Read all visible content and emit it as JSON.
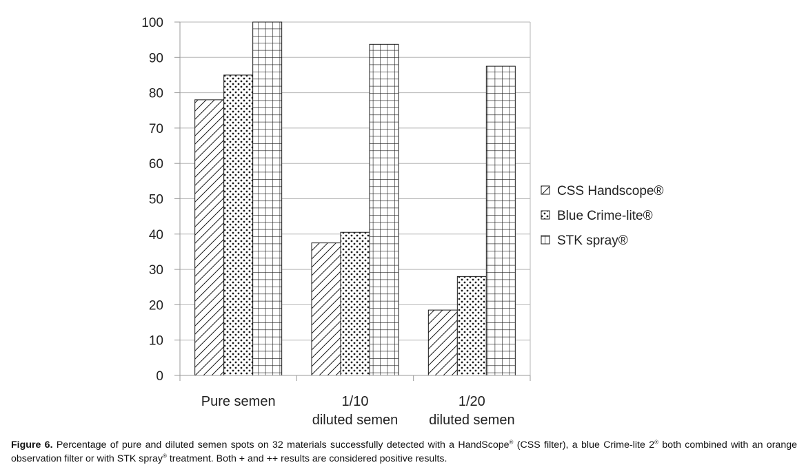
{
  "chart_data": {
    "type": "bar",
    "categories": [
      [
        "Pure semen"
      ],
      [
        "1/10",
        "diluted semen"
      ],
      [
        "1/20",
        "diluted semen"
      ]
    ],
    "series": [
      {
        "name": "CSS Handscope®",
        "pattern": "hatch",
        "values": [
          78,
          37.5,
          18.5
        ]
      },
      {
        "name": "Blue Crime-lite®",
        "pattern": "dots",
        "values": [
          85,
          40.5,
          28
        ]
      },
      {
        "name": "STK spray®",
        "pattern": "grid",
        "values": [
          100,
          93.7,
          87.5
        ]
      }
    ],
    "ylim": [
      0,
      100
    ],
    "yticks": [
      0,
      10,
      20,
      30,
      40,
      50,
      60,
      70,
      80,
      90,
      100
    ],
    "grid": "horizontal",
    "legend_position": "right",
    "title": "",
    "xlabel": "",
    "ylabel": ""
  },
  "caption": {
    "label": "Figure 6.",
    "parts": [
      " Percentage of pure and diluted semen spots on 32 materials successfully detected with a HandScope",
      "®",
      " (CSS filter), a blue Crime-lite 2",
      "®",
      " both combined with an orange observation filter or with STK spray",
      "®",
      " treatment. Both + and ++ results are considered positive results."
    ]
  },
  "colors": {
    "axis": "#9a9a9a",
    "grid": "#b5b5b5",
    "bar_stroke": "#1a1a1a",
    "text": "#222222"
  }
}
